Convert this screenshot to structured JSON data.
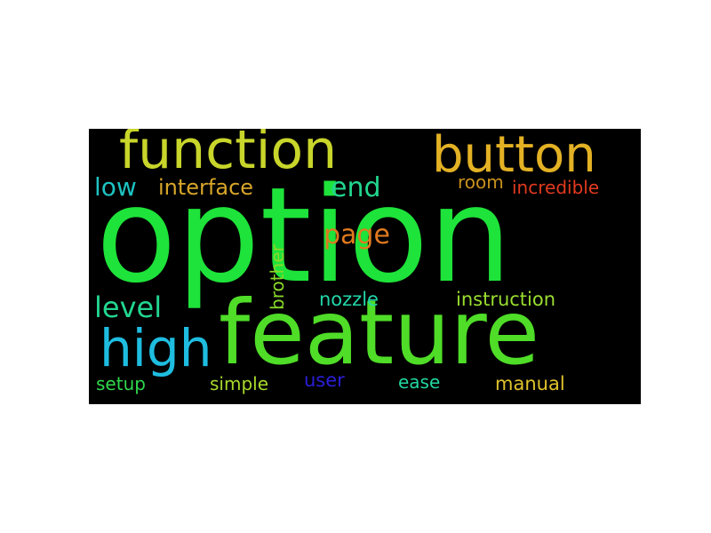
{
  "word_cloud": {
    "background": "#000000",
    "words": [
      {
        "id": "option",
        "text": "option",
        "color": "#1ee33a"
      },
      {
        "id": "feature",
        "text": "feature",
        "color": "#4fdd28"
      },
      {
        "id": "function",
        "text": "function",
        "color": "#c8d52a"
      },
      {
        "id": "button",
        "text": "button",
        "color": "#e3b124"
      },
      {
        "id": "high",
        "text": "high",
        "color": "#1ebde0"
      },
      {
        "id": "low",
        "text": "low",
        "color": "#1ec2c2"
      },
      {
        "id": "interface",
        "text": "interface",
        "color": "#d8a62a"
      },
      {
        "id": "end",
        "text": "end",
        "color": "#22d68e"
      },
      {
        "id": "room",
        "text": "room",
        "color": "#c8921e"
      },
      {
        "id": "incredible",
        "text": "incredible",
        "color": "#e23a1e"
      },
      {
        "id": "page",
        "text": "page",
        "color": "#e07a1e"
      },
      {
        "id": "level",
        "text": "level",
        "color": "#22d690"
      },
      {
        "id": "brother",
        "text": "brother",
        "color": "#8ad82a"
      },
      {
        "id": "nozzle",
        "text": "nozzle",
        "color": "#22d6a8"
      },
      {
        "id": "instruction",
        "text": "instruction",
        "color": "#9ade30"
      },
      {
        "id": "setup",
        "text": "setup",
        "color": "#30d84c"
      },
      {
        "id": "simple",
        "text": "simple",
        "color": "#a8d82a"
      },
      {
        "id": "user",
        "text": "user",
        "color": "#2a1ed8"
      },
      {
        "id": "ease",
        "text": "ease",
        "color": "#22d6a0"
      },
      {
        "id": "manual",
        "text": "manual",
        "color": "#e0c22a"
      }
    ]
  }
}
